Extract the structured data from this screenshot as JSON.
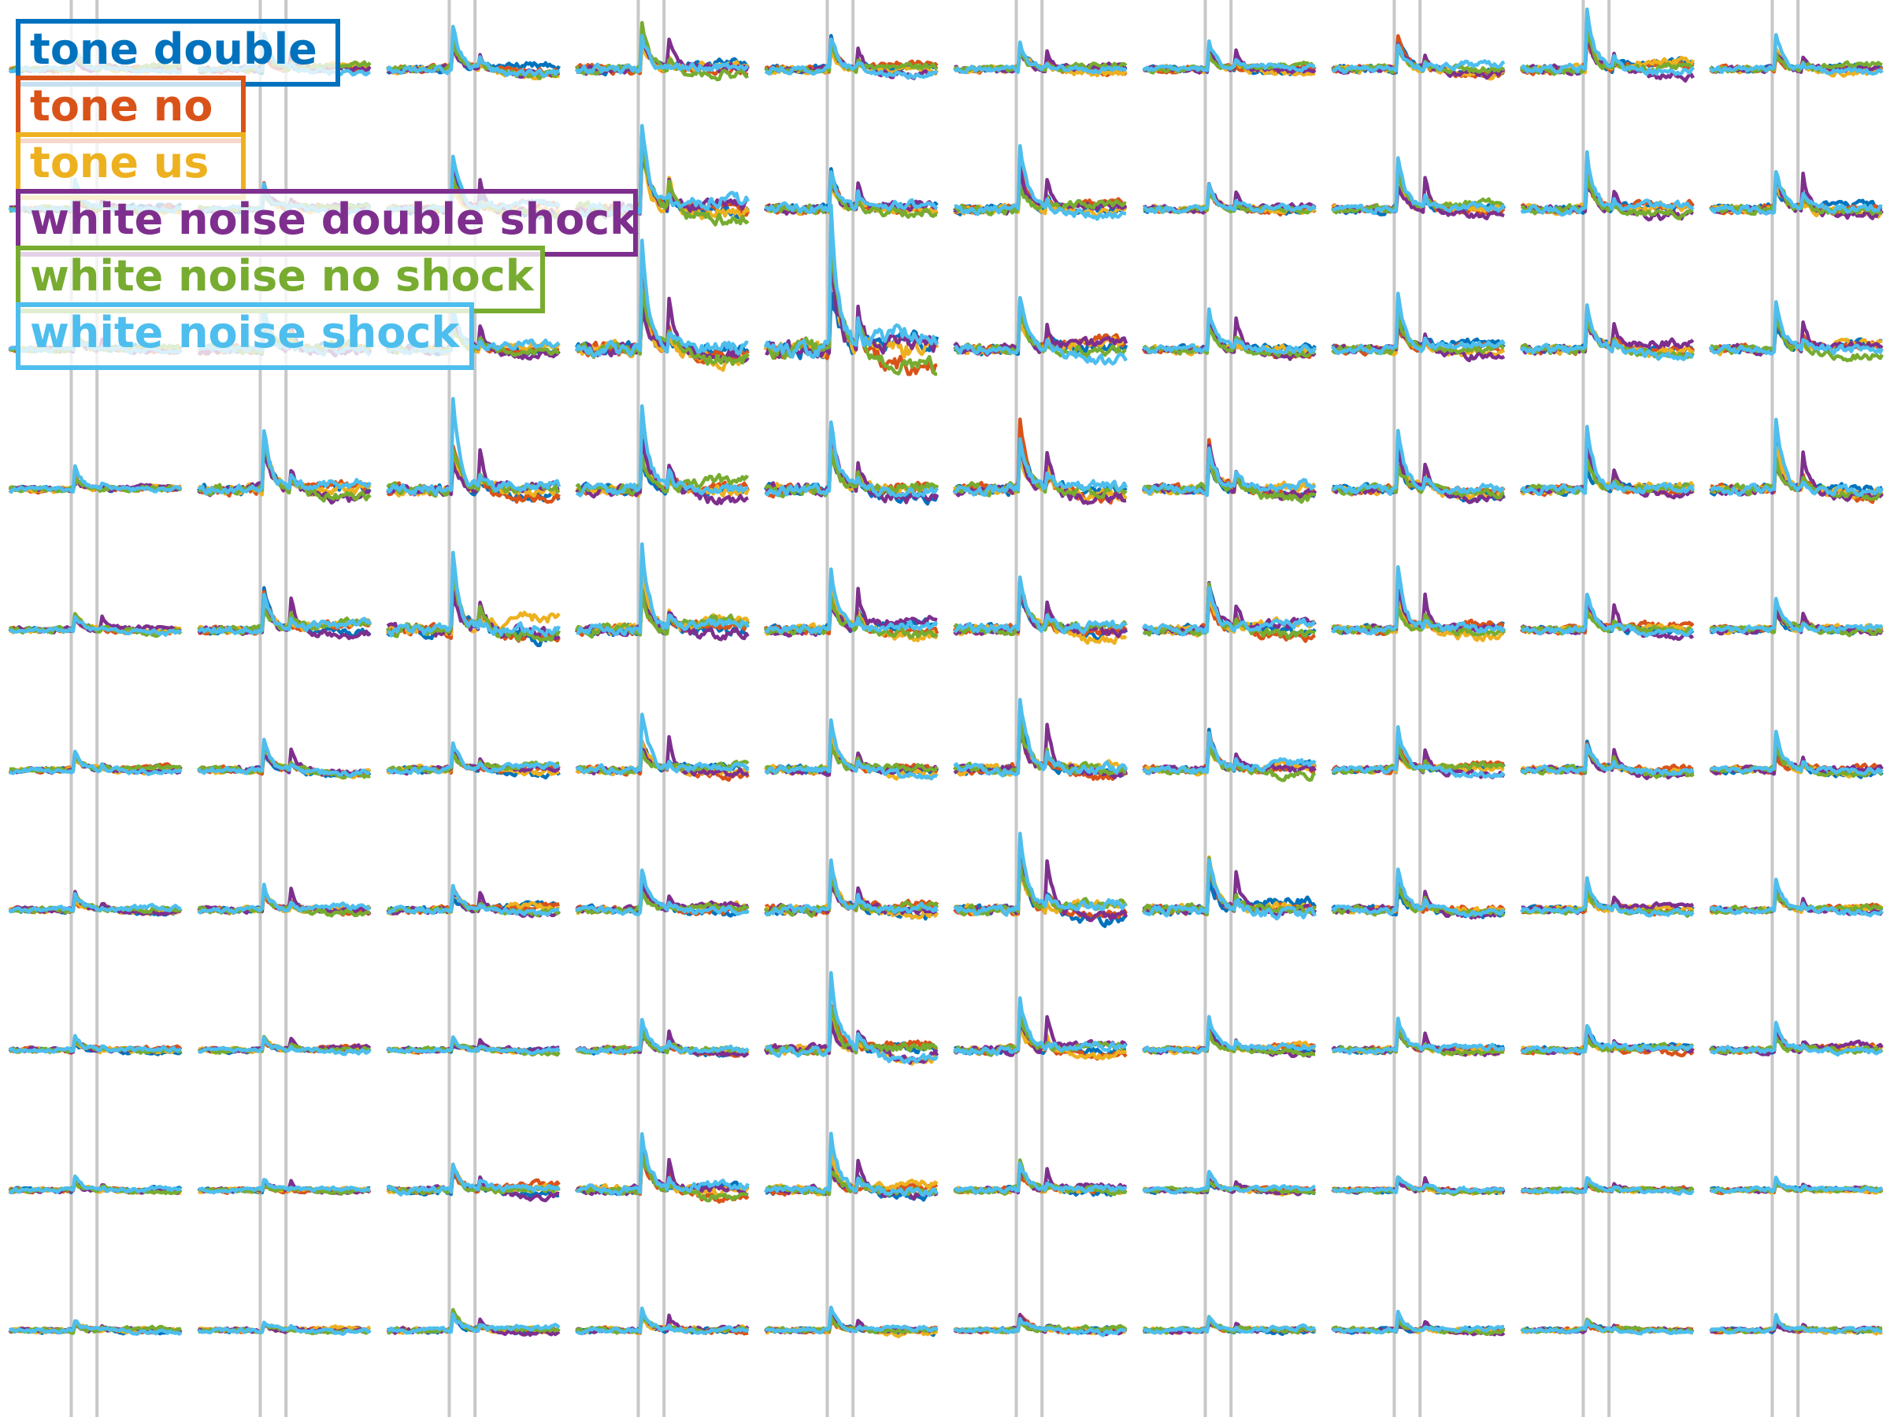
{
  "chart_data": {
    "type": "line",
    "grid_rows": 10,
    "grid_cols": 10,
    "title": "",
    "xlabel": "",
    "ylabel": "",
    "event_markers": "two gray vertical lines per column",
    "legend_placement": "top-left",
    "series": [
      {
        "name": "tone double",
        "color": "#0072BD"
      },
      {
        "name": "tone no",
        "color": "#D95319"
      },
      {
        "name": "tone us",
        "color": "#EDB120"
      },
      {
        "name": "white noise double shock",
        "color": "#7E2F8E"
      },
      {
        "name": "white noise no shock",
        "color": "#77AC30"
      },
      {
        "name": "white noise shock",
        "color": "#4DBEEE"
      }
    ],
    "panel_response_amplitude": [
      [
        0.5,
        0.8,
        1.0,
        1.4,
        1.0,
        0.8,
        0.7,
        1.0,
        1.4,
        0.8
      ],
      [
        0.6,
        0.8,
        1.2,
        2.4,
        1.4,
        1.3,
        0.8,
        1.2,
        1.4,
        1.4
      ],
      [
        0.5,
        1.2,
        1.2,
        2.4,
        3.6,
        1.8,
        1.2,
        1.2,
        1.4,
        1.3
      ],
      [
        0.5,
        1.7,
        1.8,
        1.8,
        2.0,
        2.0,
        1.7,
        1.4,
        1.3,
        1.5
      ],
      [
        0.5,
        1.2,
        2.2,
        1.8,
        1.6,
        1.7,
        1.5,
        1.3,
        1.0,
        0.9
      ],
      [
        0.5,
        0.8,
        0.8,
        1.2,
        1.2,
        1.8,
        1.2,
        0.9,
        1.0,
        0.8
      ],
      [
        0.5,
        0.7,
        0.8,
        1.0,
        1.5,
        1.7,
        1.6,
        1.1,
        0.8,
        0.7
      ],
      [
        0.4,
        0.4,
        0.4,
        0.8,
        1.6,
        1.2,
        0.7,
        0.7,
        0.7,
        0.8
      ],
      [
        0.3,
        0.3,
        1.0,
        1.4,
        1.2,
        0.9,
        0.4,
        0.4,
        0.3,
        0.3
      ],
      [
        0.3,
        0.3,
        0.6,
        0.6,
        0.5,
        0.5,
        0.4,
        0.4,
        0.3,
        0.3
      ]
    ]
  }
}
